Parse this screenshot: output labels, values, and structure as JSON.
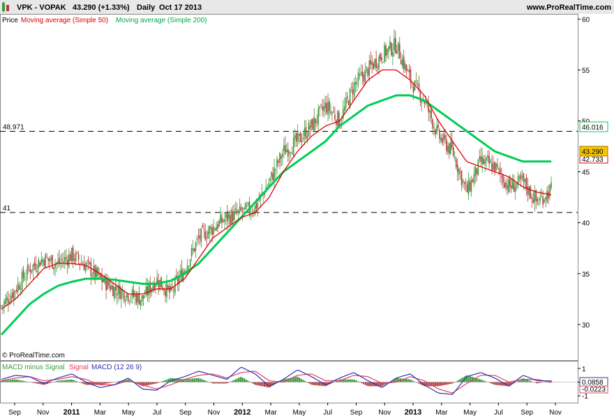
{
  "header": {
    "symbol": "VPK - VOPAK",
    "price_change": "43.290 (+1.33%)",
    "period": "Daily",
    "date": "Oct 17 2013",
    "site": "www.ProRealTime.com"
  },
  "legend": {
    "price_label": "Price",
    "ma50_label": "Moving average (Simple 50)",
    "ma200_label": "Moving average (Simple 200)"
  },
  "copyright": "© ProRealTime.com",
  "macd_legend": {
    "hist_label": "MACD minus Signal",
    "signal_label": "Signal",
    "macd_label": "MACD (12 26 9)"
  },
  "badges": {
    "price": "43.290",
    "ma200": "46.016",
    "ma50": "42.733",
    "macd": "0.0858",
    "signal": "-0.0223"
  },
  "colors": {
    "up": "#3a9a3a",
    "down": "#b03a3a",
    "ma50": "#e00000",
    "ma200": "#00cc55",
    "macd": "#3030b0",
    "signal": "#e04060",
    "badge_yellow": "#f5c400"
  },
  "chart_data": [
    {
      "type": "line",
      "panel": "price",
      "x_tick_labels": [
        "Sep",
        "Nov",
        "2011",
        "Mar",
        "May",
        "Jul",
        "Sep",
        "Nov",
        "2012",
        "Mar",
        "May",
        "Jul",
        "Sep",
        "Nov",
        "2013",
        "Mar",
        "May",
        "Jul",
        "Sep",
        "Nov"
      ],
      "y_tick_labels": [
        "30",
        "35",
        "40",
        "45",
        "50",
        "55",
        "60"
      ],
      "ylim": [
        26.5,
        60.5
      ],
      "horizontal_levels": [
        {
          "label": "48.971",
          "value": 48.971
        },
        {
          "label": "41",
          "value": 41
        }
      ],
      "series": [
        {
          "name": "Price",
          "x": [
            0,
            1,
            2,
            3,
            4,
            5,
            6,
            7,
            8,
            9,
            10,
            11,
            12,
            13,
            14,
            15,
            16,
            17,
            18,
            19,
            20,
            21,
            22,
            23,
            24,
            25,
            26,
            27,
            28,
            29,
            30,
            31,
            32,
            33,
            34,
            35,
            36,
            37,
            38,
            39
          ],
          "values": [
            31.8,
            33.5,
            35.5,
            36.5,
            36.0,
            36.8,
            35.8,
            34.5,
            33.5,
            33.0,
            32.5,
            34.5,
            33.0,
            35.5,
            38.5,
            39.5,
            40.5,
            41.0,
            41.5,
            44.0,
            47.0,
            48.0,
            49.5,
            51.5,
            50.0,
            53.5,
            55.0,
            56.5,
            57.5,
            54.0,
            52.0,
            48.5,
            47.0,
            43.0,
            46.0,
            45.5,
            43.5,
            44.0,
            42.0,
            43.29
          ]
        },
        {
          "name": "Moving average (Simple 50)",
          "x": [
            0,
            1,
            2,
            3,
            4,
            5,
            6,
            7,
            8,
            9,
            10,
            11,
            12,
            13,
            14,
            15,
            16,
            17,
            18,
            19,
            20,
            21,
            22,
            23,
            24,
            25,
            26,
            27,
            28,
            29,
            30,
            31,
            32,
            33,
            34,
            35,
            36,
            37,
            38,
            39
          ],
          "values": [
            31.5,
            32.5,
            34.0,
            35.5,
            36.0,
            36.0,
            35.8,
            35.0,
            34.0,
            33.0,
            33.0,
            33.5,
            33.5,
            34.5,
            36.5,
            38.5,
            39.5,
            40.5,
            41.0,
            42.5,
            45.0,
            47.0,
            48.5,
            49.5,
            50.0,
            52.0,
            54.0,
            55.0,
            55.0,
            54.0,
            52.5,
            50.0,
            48.0,
            46.0,
            45.5,
            45.0,
            44.5,
            43.5,
            43.0,
            42.73
          ]
        },
        {
          "name": "Moving average (Simple 200)",
          "x": [
            0,
            1,
            2,
            3,
            4,
            5,
            6,
            7,
            8,
            9,
            10,
            11,
            12,
            13,
            14,
            15,
            16,
            17,
            18,
            19,
            20,
            21,
            22,
            23,
            24,
            25,
            26,
            27,
            28,
            29,
            30,
            31,
            32,
            33,
            34,
            35,
            36,
            37,
            38,
            39
          ],
          "values": [
            29.0,
            30.5,
            32.0,
            33.0,
            33.8,
            34.2,
            34.5,
            34.5,
            34.4,
            34.2,
            34.0,
            34.0,
            34.3,
            35.0,
            36.0,
            37.5,
            39.0,
            40.5,
            42.0,
            43.5,
            45.0,
            46.0,
            47.0,
            48.0,
            49.5,
            50.5,
            51.5,
            52.0,
            52.5,
            52.5,
            52.0,
            51.0,
            50.0,
            49.0,
            48.0,
            47.0,
            46.5,
            46.0,
            46.02,
            46.02
          ]
        }
      ]
    },
    {
      "type": "line",
      "panel": "macd",
      "y_tick_labels": [
        "1",
        "0",
        "-1"
      ],
      "ylim": [
        -1.5,
        1.5
      ],
      "series": [
        {
          "name": "MACD (12 26 9)",
          "x": [
            0,
            1,
            2,
            3,
            4,
            5,
            6,
            7,
            8,
            9,
            10,
            11,
            12,
            13,
            14,
            15,
            16,
            17,
            18,
            19,
            20,
            21,
            22,
            23,
            24,
            25,
            26,
            27,
            28,
            29,
            30,
            31,
            32,
            33,
            34,
            35,
            36,
            37,
            38,
            39
          ],
          "values": [
            0.2,
            0.5,
            0.4,
            -0.1,
            0.3,
            0.6,
            0.0,
            -0.4,
            -0.2,
            0.3,
            -0.5,
            -0.6,
            0.1,
            0.4,
            0.8,
            0.5,
            0.2,
            1.1,
            0.6,
            -0.3,
            0.2,
            0.9,
            0.4,
            -0.2,
            0.3,
            0.7,
            0.1,
            -0.4,
            0.3,
            0.6,
            -0.2,
            -0.8,
            -0.9,
            0.4,
            0.7,
            0.3,
            -0.3,
            0.5,
            0.1,
            0.09
          ]
        },
        {
          "name": "Signal",
          "x": [
            0,
            1,
            2,
            3,
            4,
            5,
            6,
            7,
            8,
            9,
            10,
            11,
            12,
            13,
            14,
            15,
            16,
            17,
            18,
            19,
            20,
            21,
            22,
            23,
            24,
            25,
            26,
            27,
            28,
            29,
            30,
            31,
            32,
            33,
            34,
            35,
            36,
            37,
            38,
            39
          ],
          "values": [
            0.1,
            0.3,
            0.4,
            0.1,
            0.2,
            0.4,
            0.2,
            -0.2,
            -0.2,
            0.1,
            -0.2,
            -0.5,
            -0.2,
            0.2,
            0.5,
            0.6,
            0.3,
            0.7,
            0.8,
            0.1,
            0.0,
            0.5,
            0.6,
            0.1,
            0.1,
            0.5,
            0.4,
            -0.1,
            0.0,
            0.4,
            0.1,
            -0.5,
            -0.8,
            -0.1,
            0.5,
            0.5,
            0.0,
            0.2,
            0.2,
            -0.02
          ]
        }
      ]
    }
  ]
}
